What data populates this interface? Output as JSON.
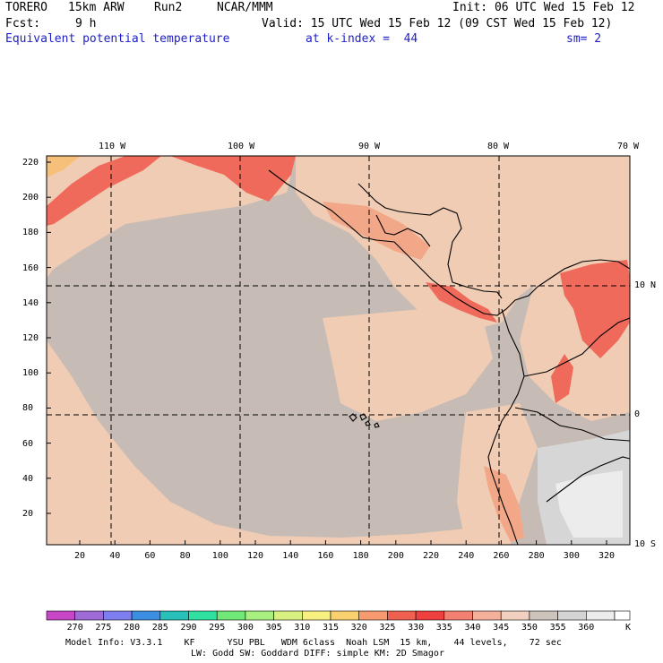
{
  "header": {
    "model": "TORERO",
    "resolution": "15km ARW",
    "run": "Run2",
    "org": "NCAR/MMM",
    "init": "Init: 06 UTC Wed 15 Feb 12",
    "fcst_label": "Fcst:",
    "fcst_value": "9 h",
    "valid": "Valid: 15 UTC Wed 15 Feb 12 (09 CST Wed 15 Feb 12)",
    "field": "Equivalent potential temperature",
    "level": "at k-index =  44",
    "smoothing": "sm= 2"
  },
  "map": {
    "top_lon_labels": [
      "110 W",
      "100 W",
      "90 W",
      "80 W",
      "70 W"
    ],
    "right_lat_labels": [
      "10 N",
      "0",
      "10 S"
    ],
    "y_ticks": [
      "220",
      "200",
      "180",
      "160",
      "140",
      "120",
      "100",
      "80",
      "60",
      "40",
      "20"
    ],
    "x_ticks": [
      "20",
      "40",
      "60",
      "80",
      "100",
      "120",
      "140",
      "160",
      "180",
      "200",
      "220",
      "240",
      "260",
      "280",
      "300",
      "320"
    ],
    "colors": {
      "bg_field": "#c6bcb5",
      "warm1": "#f0ccb4",
      "warm2": "#f2a888",
      "warm3": "#ef6a5a",
      "warm4": "#f6c07a",
      "cool1": "#d6d6d6",
      "cool2": "#ececec",
      "coast": "#000000"
    }
  },
  "colorbar": {
    "labels": [
      "270",
      "275",
      "280",
      "285",
      "290",
      "295",
      "300",
      "305",
      "310",
      "315",
      "320",
      "325",
      "330",
      "335",
      "340",
      "345",
      "350",
      "355",
      "360"
    ],
    "unit": "K",
    "colors": [
      "#c646c6",
      "#9e6ad6",
      "#7e7ef0",
      "#3c8ee0",
      "#28c0b8",
      "#30e0a0",
      "#70e878",
      "#a8f080",
      "#d8f080",
      "#f8f080",
      "#f8d070",
      "#f89a70",
      "#f06050",
      "#ef4040",
      "#f38070",
      "#f4b09a",
      "#f2d0c0",
      "#cdc4bc",
      "#d4d4d4",
      "#ececec"
    ]
  },
  "footer": {
    "line1": "Model Info: V3.3.1    KF      YSU PBL   WDM 6class  Noah LSM  15 km,    44 levels,    72 sec",
    "line2": "LW: Godd SW: Goddard DIFF: simple KM: 2D Smagor"
  }
}
